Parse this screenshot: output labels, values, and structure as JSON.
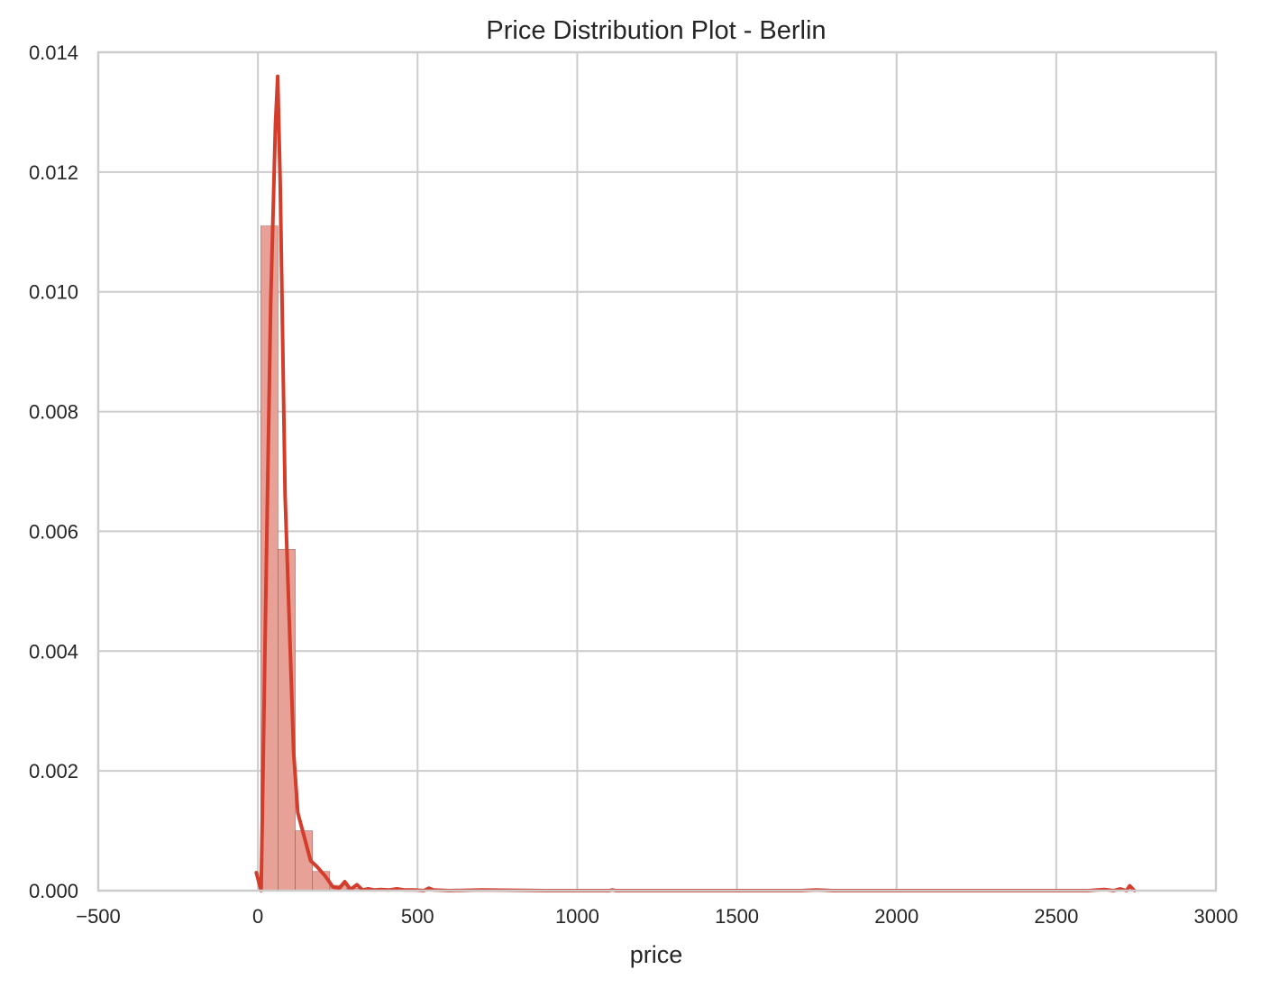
{
  "chart_data": {
    "type": "bar",
    "title": "Price Distribution Plot - Berlin",
    "xlabel": "price",
    "ylabel": "",
    "xlim": [
      -500,
      3000
    ],
    "ylim": [
      0,
      0.014
    ],
    "xticks": [
      -500,
      0,
      500,
      1000,
      1500,
      2000,
      2500,
      3000
    ],
    "xtick_labels": [
      "−500",
      "0",
      "500",
      "1000",
      "1500",
      "2000",
      "2500",
      "3000"
    ],
    "yticks": [
      0,
      0.002,
      0.004,
      0.006,
      0.008,
      0.01,
      0.012,
      0.014
    ],
    "ytick_labels": [
      "0.000",
      "0.002",
      "0.004",
      "0.006",
      "0.008",
      "0.010",
      "0.012",
      "0.014"
    ],
    "grid": true,
    "histogram": {
      "bin_edges": [
        9,
        63,
        117,
        171,
        225,
        279,
        333,
        387,
        441,
        495,
        549,
        603,
        657,
        711,
        765,
        819,
        873,
        927,
        981,
        1035,
        1089,
        1143,
        1197,
        1251,
        1305,
        1359,
        1413,
        1467,
        1521,
        1575,
        1629,
        1683,
        1737,
        1791,
        1845,
        1899,
        1953,
        2007,
        2061,
        2115,
        2169,
        2223,
        2277,
        2331,
        2385,
        2439,
        2493,
        2547,
        2601,
        2655,
        2709,
        2763
      ],
      "densities": [
        0.0111,
        0.0057,
        0.001,
        0.00032,
        9e-05,
        4e-05,
        2e-05,
        1e-05,
        1e-05,
        5e-06,
        5e-06,
        2e-06,
        2e-06,
        1e-06,
        1e-06,
        1e-06,
        5e-07,
        5e-07,
        5e-07,
        5e-07,
        1e-06,
        5e-07,
        3e-07,
        3e-07,
        3e-07,
        3e-07,
        3e-07,
        3e-07,
        3e-07,
        3e-07,
        3e-07,
        3e-07,
        3e-07,
        3e-07,
        3e-07,
        3e-07,
        3e-07,
        3e-07,
        3e-07,
        3e-07,
        3e-07,
        3e-07,
        3e-07,
        3e-07,
        3e-07,
        3e-07,
        3e-07,
        3e-07,
        3e-07,
        3e-07,
        1e-06
      ]
    },
    "kde": {
      "x": [
        -5,
        10,
        25,
        40,
        55,
        62,
        70,
        85,
        100,
        112,
        125,
        145,
        165,
        185,
        210,
        235,
        255,
        272,
        290,
        310,
        328,
        345,
        365,
        385,
        410,
        435,
        460,
        490,
        520,
        535,
        550,
        600,
        700,
        900,
        1100,
        1110,
        1120,
        1300,
        1500,
        1700,
        1750,
        1800,
        2000,
        2300,
        2600,
        2650,
        2680,
        2700,
        2720,
        2730,
        2745
      ],
      "y": [
        0.0003,
        0.0,
        0.005,
        0.0098,
        0.0128,
        0.0136,
        0.0118,
        0.0066,
        0.0042,
        0.0023,
        0.0013,
        0.0009,
        0.0005,
        0.0004,
        0.00025,
        6e-05,
        4e-05,
        0.00015,
        2e-05,
        0.0001,
        1e-05,
        3e-05,
        1e-05,
        2e-05,
        1e-05,
        3e-05,
        1e-05,
        1e-05,
        0.0,
        4e-05,
        1e-05,
        0.0,
        1e-05,
        0.0,
        0.0,
        1e-05,
        0.0,
        0.0,
        0.0,
        0.0,
        1e-05,
        0.0,
        0.0,
        0.0,
        0.0,
        2e-05,
        0.0,
        3e-05,
        0.0,
        8e-05,
        0.0
      ]
    },
    "colors": {
      "bar_fill": "#e8a196",
      "bar_edge": "#7a4a44",
      "kde_line": "#d33d2c",
      "grid": "#cccccc",
      "spine": "#cccccc",
      "text": "#262626"
    }
  }
}
